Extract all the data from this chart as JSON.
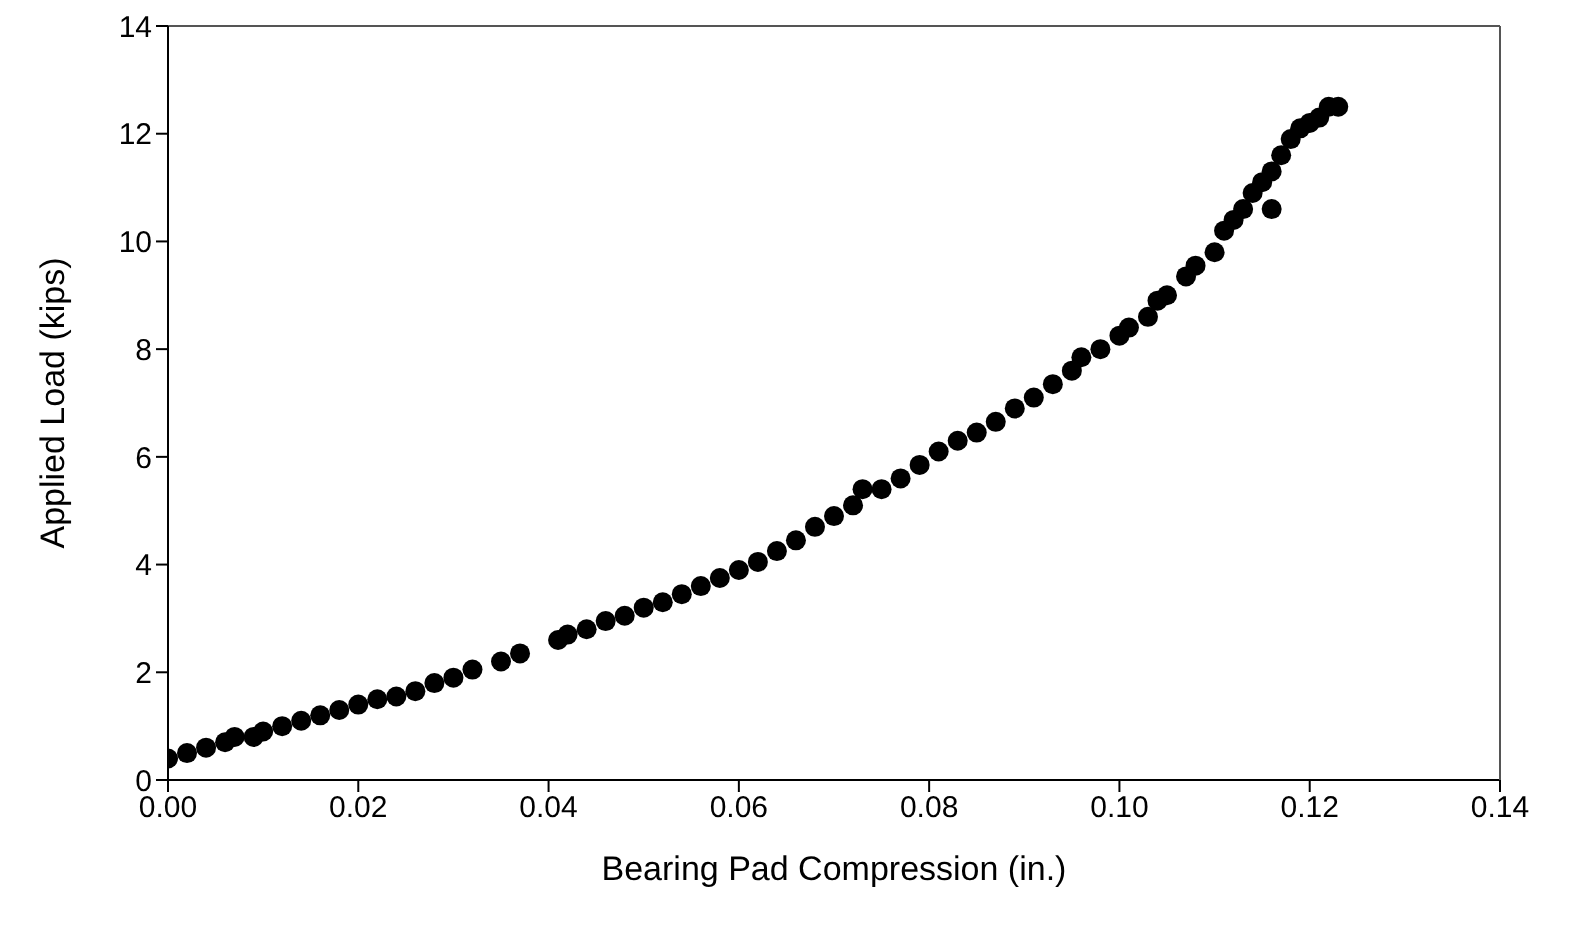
{
  "chart_data": {
    "type": "scatter",
    "xlabel": "Bearing Pad Compression (in.)",
    "ylabel": "Applied Load (kips)",
    "xlim": [
      0,
      0.14
    ],
    "ylim": [
      0,
      14
    ],
    "xticks": [
      {
        "value": 0,
        "label": "0.00"
      },
      {
        "value": 0.02,
        "label": "0.02"
      },
      {
        "value": 0.04,
        "label": "0.04"
      },
      {
        "value": 0.06,
        "label": "0.06"
      },
      {
        "value": 0.08,
        "label": "0.08"
      },
      {
        "value": 0.1,
        "label": "0.10"
      },
      {
        "value": 0.12,
        "label": "0.12"
      },
      {
        "value": 0.14,
        "label": "0.14"
      }
    ],
    "yticks": [
      0,
      2,
      4,
      6,
      8,
      10,
      12,
      14
    ],
    "marker": "circle",
    "series": [
      {
        "color": "#000000",
        "x": [
          0,
          0.002,
          0.004,
          0.006,
          0.007,
          0.009,
          0.01,
          0.012,
          0.014,
          0.016,
          0.018,
          0.02,
          0.022,
          0.024,
          0.026,
          0.028,
          0.03,
          0.032,
          0.035,
          0.037,
          0.041,
          0.042,
          0.044,
          0.046,
          0.048,
          0.05,
          0.052,
          0.054,
          0.056,
          0.058,
          0.06,
          0.062,
          0.064,
          0.066,
          0.068,
          0.07,
          0.072,
          0.073,
          0.075,
          0.077,
          0.079,
          0.081,
          0.083,
          0.085,
          0.087,
          0.089,
          0.091,
          0.093,
          0.095,
          0.096,
          0.098,
          0.1,
          0.101,
          0.103,
          0.104,
          0.105,
          0.107,
          0.108,
          0.11,
          0.111,
          0.112,
          0.113,
          0.114,
          0.115,
          0.116,
          0.116,
          0.117,
          0.118,
          0.119,
          0.12,
          0.121,
          0.122,
          0.123
        ],
        "values": [
          0.4,
          0.5,
          0.6,
          0.7,
          0.8,
          0.8,
          0.9,
          1.0,
          1.1,
          1.2,
          1.3,
          1.4,
          1.5,
          1.55,
          1.65,
          1.8,
          1.9,
          2.05,
          2.2,
          2.35,
          2.6,
          2.7,
          2.8,
          2.95,
          3.05,
          3.2,
          3.3,
          3.45,
          3.6,
          3.75,
          3.9,
          4.05,
          4.25,
          4.45,
          4.7,
          4.9,
          5.1,
          5.4,
          5.4,
          5.6,
          5.85,
          6.1,
          6.3,
          6.45,
          6.65,
          6.9,
          7.1,
          7.35,
          7.6,
          7.85,
          8.0,
          8.25,
          8.4,
          8.6,
          8.9,
          9.0,
          9.35,
          9.55,
          9.8,
          10.2,
          10.4,
          10.6,
          10.9,
          11.1,
          11.3,
          10.6,
          11.6,
          11.9,
          12.1,
          12.2,
          12.3,
          12.5,
          12.5
        ]
      }
    ]
  }
}
